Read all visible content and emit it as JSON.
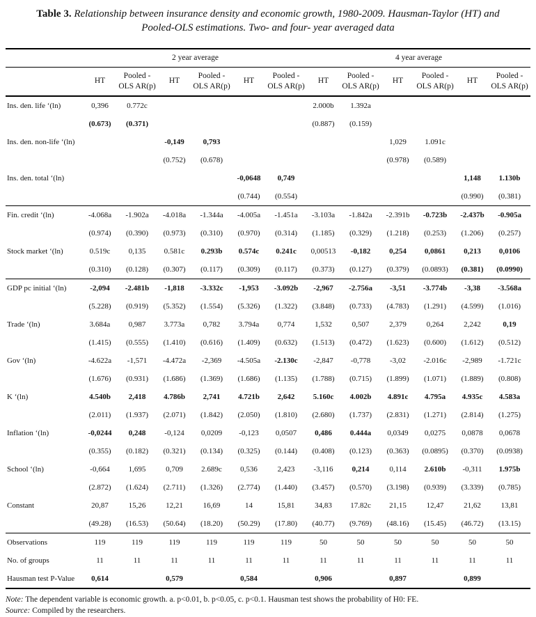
{
  "title": {
    "label": "Table 3.",
    "text": "Relationship between insurance density and economic growth, 1980-2009. Hausman-Taylor (HT) and Pooled-OLS estimations. Two- and four- year averaged data"
  },
  "table": {
    "groups": [
      "2 year average",
      "4 year average"
    ],
    "col_headers": [
      "HT",
      "Pooled - OLS AR(p)",
      "HT",
      "Pooled - OLS AR(p)",
      "HT",
      "Pooled - OLS AR(p)",
      "HT",
      "Pooled - OLS AR(p)",
      "HT",
      "Pooled - OLS AR(p)",
      "HT",
      "Pooled - OLS AR(p)"
    ],
    "rows": [
      {
        "label": "Ins. den. life ‘(ln)",
        "cells": [
          "0,396",
          "0.772c",
          "",
          "",
          "",
          "",
          "2.000b",
          "1.392a",
          "",
          "",
          "",
          ""
        ],
        "bold": []
      },
      {
        "label": "",
        "cells": [
          "(0.673)",
          "(0.371)",
          "",
          "",
          "",
          "",
          "(0.887)",
          "(0.159)",
          "",
          "",
          "",
          ""
        ],
        "bold": [
          0,
          1
        ]
      },
      {
        "label": "Ins. den. non-life ‘(ln)",
        "cells": [
          "",
          "",
          "-0,149",
          "0,793",
          "",
          "",
          "",
          "",
          "1,029",
          "1.091c",
          "",
          ""
        ],
        "bold": [
          2,
          3
        ]
      },
      {
        "label": "",
        "cells": [
          "",
          "",
          "(0.752)",
          "(0.678)",
          "",
          "",
          "",
          "",
          "(0.978)",
          "(0.589)",
          "",
          ""
        ],
        "bold": []
      },
      {
        "label": "Ins. den. total ‘(ln)",
        "cells": [
          "",
          "",
          "",
          "",
          "-0,0648",
          "0,749",
          "",
          "",
          "",
          "",
          "1,148",
          "1.130b"
        ],
        "bold": [
          4,
          5,
          10,
          11
        ]
      },
      {
        "label": "",
        "cells": [
          "",
          "",
          "",
          "",
          "(0.744)",
          "(0.554)",
          "",
          "",
          "",
          "",
          "(0.990)",
          "(0.381)"
        ],
        "bold": []
      },
      {
        "label": "Fin. credit ‘(ln)",
        "rule": true,
        "cells": [
          "-4.068a",
          "-1.902a",
          "-4.018a",
          "-1.344a",
          "-4.005a",
          "-1.451a",
          "-3.103a",
          "-1.842a",
          "-2.391b",
          "-0.723b",
          "-2.437b",
          "-0.905a"
        ],
        "bold": [
          9,
          10,
          11
        ]
      },
      {
        "label": "",
        "cells": [
          "(0.974)",
          "(0.390)",
          "(0.973)",
          "(0.310)",
          "(0.970)",
          "(0.314)",
          "(1.185)",
          "(0.329)",
          "(1.218)",
          "(0.253)",
          "(1.206)",
          "(0.257)"
        ],
        "bold": []
      },
      {
        "label": "Stock market ‘(ln)",
        "cells": [
          "0.519c",
          "0,135",
          "0.581c",
          "0.293b",
          "0.574c",
          "0.241c",
          "0,00513",
          "-0,182",
          "0,254",
          "0,0861",
          "0,213",
          "0,0106"
        ],
        "bold": [
          3,
          4,
          5,
          7,
          8,
          9,
          10,
          11
        ]
      },
      {
        "label": "",
        "cells": [
          "(0.310)",
          "(0.128)",
          "(0.307)",
          "(0.117)",
          "(0.309)",
          "(0.117)",
          "(0.373)",
          "(0.127)",
          "(0.379)",
          "(0.0893)",
          "(0.381)",
          "(0.0990)"
        ],
        "bold": [
          10,
          11
        ]
      },
      {
        "label": "GDP pc initial ‘(ln)",
        "rule": true,
        "cells": [
          "-2,094",
          "-2.481b",
          "-1,818",
          "-3.332c",
          "-1,953",
          "-3.092b",
          "-2,967",
          "-2.756a",
          "-3,51",
          "-3.774b",
          "-3,38",
          "-3.568a"
        ],
        "bold": [
          0,
          1,
          2,
          3,
          4,
          5,
          6,
          7,
          8,
          9,
          10,
          11
        ]
      },
      {
        "label": "",
        "cells": [
          "(5.228)",
          "(0.919)",
          "(5.352)",
          "(1.554)",
          "(5.326)",
          "(1.322)",
          "(3.848)",
          "(0.733)",
          "(4.783)",
          "(1.291)",
          "(4.599)",
          "(1.016)"
        ],
        "bold": []
      },
      {
        "label": "Trade ‘(ln)",
        "cells": [
          "3.684a",
          "0,987",
          "3.773a",
          "0,782",
          "3.794a",
          "0,774",
          "1,532",
          "0,507",
          "2,379",
          "0,264",
          "2,242",
          "0,19"
        ],
        "bold": [
          11
        ]
      },
      {
        "label": "",
        "cells": [
          "(1.415)",
          "(0.555)",
          "(1.410)",
          "(0.616)",
          "(1.409)",
          "(0.632)",
          "(1.513)",
          "(0.472)",
          "(1.623)",
          "(0.600)",
          "(1.612)",
          "(0.512)"
        ],
        "bold": []
      },
      {
        "label": "Gov ‘(ln)",
        "cells": [
          "-4.622a",
          "-1,571",
          "-4.472a",
          "-2,369",
          "-4.505a",
          "-2.130c",
          "-2,847",
          "-0,778",
          "-3,02",
          "-2.016c",
          "-2,989",
          "-1.721c"
        ],
        "bold": [
          5
        ]
      },
      {
        "label": "",
        "cells": [
          "(1.676)",
          "(0.931)",
          "(1.686)",
          "(1.369)",
          "(1.686)",
          "(1.135)",
          "(1.788)",
          "(0.715)",
          "(1.899)",
          "(1.071)",
          "(1.889)",
          "(0.808)"
        ],
        "bold": []
      },
      {
        "label": "K ‘(ln)",
        "cells": [
          "4.540b",
          "2,418",
          "4.786b",
          "2,741",
          "4.721b",
          "2,642",
          "5.160c",
          "4.002b",
          "4.891c",
          "4.795a",
          "4.935c",
          "4.583a"
        ],
        "bold": [
          0,
          1,
          2,
          3,
          4,
          5,
          6,
          7,
          8,
          9,
          10,
          11
        ]
      },
      {
        "label": "",
        "cells": [
          "(2.011)",
          "(1.937)",
          "(2.071)",
          "(1.842)",
          "(2.050)",
          "(1.810)",
          "(2.680)",
          "(1.737)",
          "(2.831)",
          "(1.271)",
          "(2.814)",
          "(1.275)"
        ],
        "bold": []
      },
      {
        "label": "Inflation ‘(ln)",
        "cells": [
          "-0,0244",
          "0,248",
          "-0,124",
          "0,0209",
          "-0,123",
          "0,0507",
          "0,486",
          "0.444a",
          "0,0349",
          "0,0275",
          "0,0878",
          "0,0678"
        ],
        "bold": [
          0,
          1,
          6,
          7
        ]
      },
      {
        "label": "",
        "cells": [
          "(0.355)",
          "(0.182)",
          "(0.321)",
          "(0.134)",
          "(0.325)",
          "(0.144)",
          "(0.408)",
          "(0.123)",
          "(0.363)",
          "(0.0895)",
          "(0.370)",
          "(0.0938)"
        ],
        "bold": []
      },
      {
        "label": "School ‘(ln)",
        "cells": [
          "-0,664",
          "1,695",
          "0,709",
          "2.689c",
          "0,536",
          "2,423",
          "-3,116",
          "0,214",
          "0,114",
          "2.610b",
          "-0,311",
          "1.975b"
        ],
        "bold": [
          7,
          9,
          11
        ]
      },
      {
        "label": "",
        "cells": [
          "(2.872)",
          "(1.624)",
          "(2.711)",
          "(1.326)",
          "(2.774)",
          "(1.440)",
          "(3.457)",
          "(0.570)",
          "(3.198)",
          "(0.939)",
          "(3.339)",
          "(0.785)"
        ],
        "bold": []
      },
      {
        "label": "Constant",
        "cells": [
          "20,87",
          "15,26",
          "12,21",
          "16,69",
          "14",
          "15,81",
          "34,83",
          "17.82c",
          "21,15",
          "12,47",
          "21,62",
          "13,81"
        ],
        "bold": []
      },
      {
        "label": "",
        "cells": [
          "(49.28)",
          "(16.53)",
          "(50.64)",
          "(18.20)",
          "(50.29)",
          "(17.80)",
          "(40.77)",
          "(9.769)",
          "(48.16)",
          "(15.45)",
          "(46.72)",
          "(13.15)"
        ],
        "bold": []
      },
      {
        "label": "Observations",
        "rule": true,
        "cells": [
          "119",
          "119",
          "119",
          "119",
          "119",
          "119",
          "50",
          "50",
          "50",
          "50",
          "50",
          "50"
        ],
        "bold": []
      },
      {
        "label": "No. of groups",
        "cells": [
          "11",
          "11",
          "11",
          "11",
          "11",
          "11",
          "11",
          "11",
          "11",
          "11",
          "11",
          "11"
        ],
        "bold": []
      },
      {
        "label": "Hausman test P-Value",
        "cells": [
          "0,614",
          "",
          "0,579",
          "",
          "0,584",
          "",
          "0,906",
          "",
          "0,897",
          "",
          "0,899",
          ""
        ],
        "bold": [
          0,
          2,
          4,
          6,
          8,
          10
        ]
      }
    ]
  },
  "notes": {
    "note_label": "Note:",
    "note_text": "The dependent variable is economic growth. a. p<0.01, b. p<0.05, c. p<0.1. Hausman test shows the probability of H0: FE.",
    "source_label": "Source:",
    "source_text": "Compiled by the researchers."
  }
}
